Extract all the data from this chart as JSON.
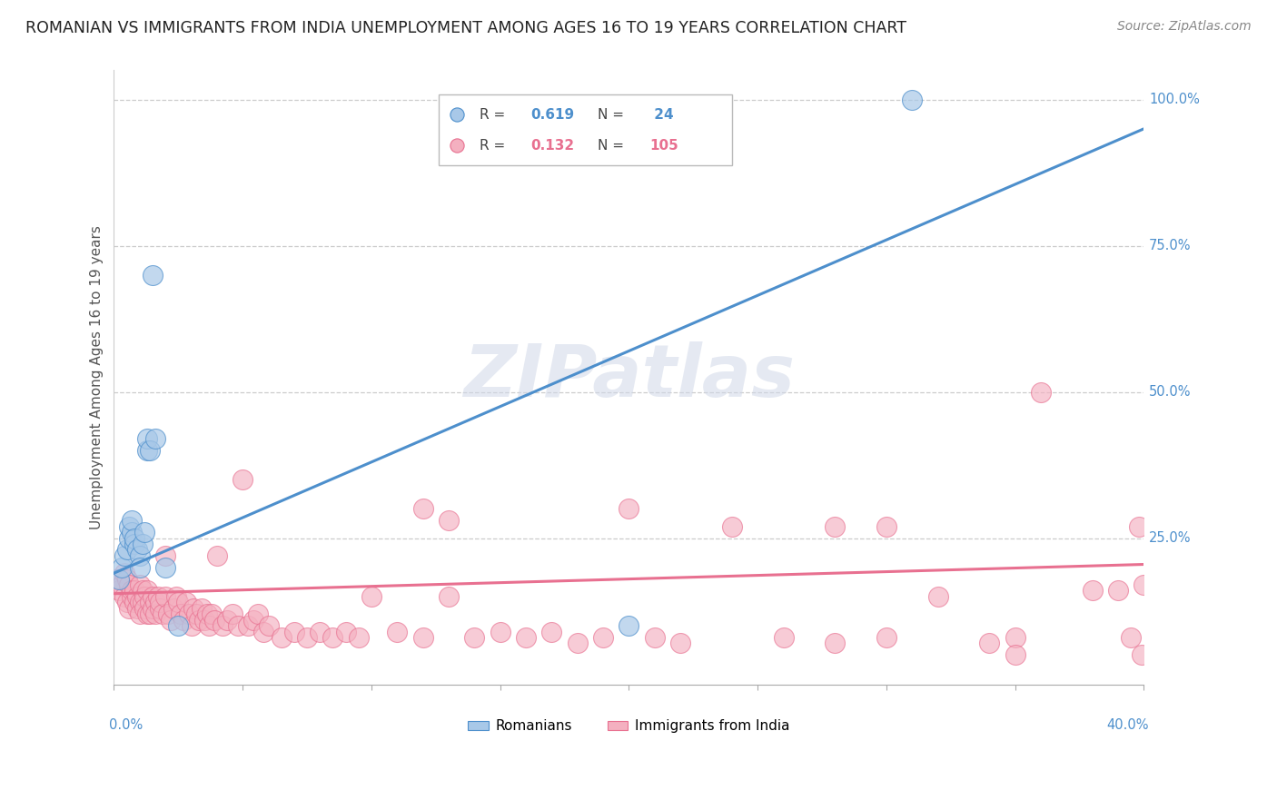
{
  "title": "ROMANIAN VS IMMIGRANTS FROM INDIA UNEMPLOYMENT AMONG AGES 16 TO 19 YEARS CORRELATION CHART",
  "source": "Source: ZipAtlas.com",
  "ylabel": "Unemployment Among Ages 16 to 19 years",
  "blue_color": "#4d8fcc",
  "pink_color": "#e87090",
  "scatter_blue_face": "#a8c8e8",
  "scatter_pink_face": "#f4b0c0",
  "watermark": "ZIPatlas",
  "xlim": [
    0.0,
    0.4
  ],
  "ylim": [
    0.0,
    1.05
  ],
  "blue_line_x": [
    0.0,
    0.4
  ],
  "blue_line_y": [
    0.19,
    0.95
  ],
  "pink_line_x": [
    0.0,
    0.4
  ],
  "pink_line_y": [
    0.155,
    0.205
  ],
  "romanians_x": [
    0.002,
    0.003,
    0.004,
    0.005,
    0.006,
    0.006,
    0.007,
    0.007,
    0.008,
    0.008,
    0.009,
    0.01,
    0.01,
    0.011,
    0.012,
    0.013,
    0.013,
    0.014,
    0.015,
    0.016,
    0.02,
    0.025,
    0.2,
    0.31
  ],
  "romanians_y": [
    0.18,
    0.2,
    0.22,
    0.23,
    0.25,
    0.27,
    0.26,
    0.28,
    0.24,
    0.25,
    0.23,
    0.22,
    0.2,
    0.24,
    0.26,
    0.4,
    0.42,
    0.4,
    0.7,
    0.42,
    0.2,
    0.1,
    0.1,
    1.0
  ],
  "immigrants_x": [
    0.001,
    0.002,
    0.003,
    0.004,
    0.004,
    0.005,
    0.005,
    0.006,
    0.006,
    0.007,
    0.007,
    0.008,
    0.008,
    0.009,
    0.009,
    0.01,
    0.01,
    0.01,
    0.011,
    0.011,
    0.012,
    0.012,
    0.013,
    0.013,
    0.014,
    0.014,
    0.015,
    0.015,
    0.016,
    0.016,
    0.017,
    0.018,
    0.018,
    0.019,
    0.02,
    0.02,
    0.021,
    0.022,
    0.023,
    0.024,
    0.025,
    0.026,
    0.027,
    0.028,
    0.029,
    0.03,
    0.031,
    0.032,
    0.033,
    0.034,
    0.035,
    0.036,
    0.037,
    0.038,
    0.039,
    0.04,
    0.042,
    0.044,
    0.046,
    0.048,
    0.05,
    0.052,
    0.054,
    0.056,
    0.058,
    0.06,
    0.065,
    0.07,
    0.075,
    0.08,
    0.085,
    0.09,
    0.095,
    0.1,
    0.11,
    0.12,
    0.13,
    0.14,
    0.15,
    0.16,
    0.17,
    0.18,
    0.19,
    0.2,
    0.21,
    0.22,
    0.24,
    0.26,
    0.28,
    0.3,
    0.32,
    0.34,
    0.35,
    0.36,
    0.38,
    0.39,
    0.395,
    0.398,
    0.399,
    0.4,
    0.12,
    0.13,
    0.28,
    0.3,
    0.35
  ],
  "immigrants_y": [
    0.18,
    0.16,
    0.17,
    0.15,
    0.19,
    0.14,
    0.18,
    0.13,
    0.17,
    0.15,
    0.16,
    0.14,
    0.16,
    0.13,
    0.15,
    0.17,
    0.14,
    0.12,
    0.16,
    0.14,
    0.15,
    0.13,
    0.16,
    0.12,
    0.14,
    0.12,
    0.15,
    0.13,
    0.14,
    0.12,
    0.15,
    0.13,
    0.14,
    0.12,
    0.15,
    0.22,
    0.12,
    0.11,
    0.13,
    0.15,
    0.14,
    0.12,
    0.11,
    0.14,
    0.12,
    0.1,
    0.13,
    0.12,
    0.11,
    0.13,
    0.11,
    0.12,
    0.1,
    0.12,
    0.11,
    0.22,
    0.1,
    0.11,
    0.12,
    0.1,
    0.35,
    0.1,
    0.11,
    0.12,
    0.09,
    0.1,
    0.08,
    0.09,
    0.08,
    0.09,
    0.08,
    0.09,
    0.08,
    0.15,
    0.09,
    0.08,
    0.15,
    0.08,
    0.09,
    0.08,
    0.09,
    0.07,
    0.08,
    0.3,
    0.08,
    0.07,
    0.27,
    0.08,
    0.07,
    0.27,
    0.15,
    0.07,
    0.08,
    0.5,
    0.16,
    0.16,
    0.08,
    0.27,
    0.05,
    0.17,
    0.3,
    0.28,
    0.27,
    0.08,
    0.05
  ]
}
